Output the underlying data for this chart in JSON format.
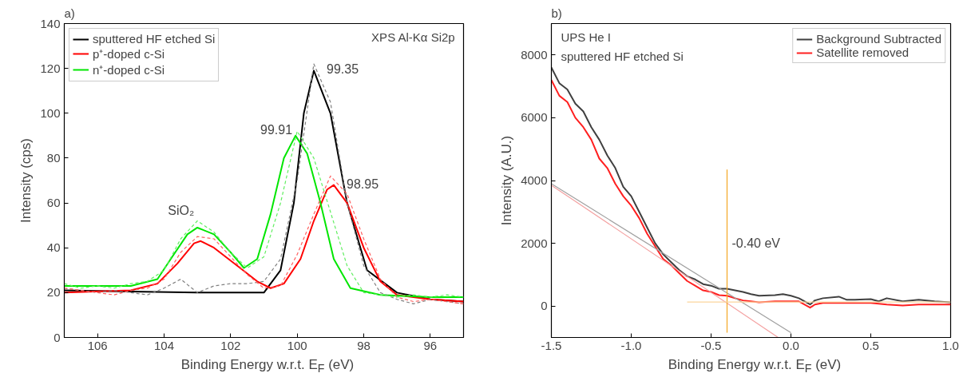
{
  "chart_data": [
    {
      "type": "line",
      "title": "a)",
      "xlabel": "Binding Energy w.r.t. E$_{F}$ (eV)",
      "ylabel": "Intensity (cps)",
      "xlim": [
        107,
        95
      ],
      "ylim": [
        0,
        140
      ],
      "xticks": [
        106,
        104,
        102,
        100,
        98,
        96
      ],
      "yticks": [
        0,
        20,
        40,
        60,
        80,
        100,
        120,
        140
      ],
      "grid": false,
      "legend": "top left",
      "annotations": [
        "XPS Al-Kα Si2p",
        {
          "text": "SiO₂",
          "x": 103,
          "y": 53
        },
        {
          "text": "99.35",
          "x": 99.5,
          "y": 119
        },
        {
          "text": "99.91",
          "x": 100.05,
          "y": 90
        },
        {
          "text": "98.95",
          "x": 98.9,
          "y": 68
        }
      ],
      "series": [
        {
          "name": "sputtered HF etched Si",
          "color": "#000000",
          "line_style": "solid",
          "x": [
            107,
            105,
            103,
            101,
            100.5,
            100.1,
            99.8,
            99.5,
            99.0,
            98.5,
            97.9,
            97,
            96,
            95
          ],
          "values": [
            21,
            20.5,
            20,
            20,
            30,
            60,
            100,
            119,
            100,
            60,
            30,
            20,
            17,
            16
          ]
        },
        {
          "name": "p⁺-doped c-Si",
          "color": "#ff0000",
          "line_style": "solid",
          "x": [
            107,
            105,
            104.2,
            103.6,
            103.1,
            102.9,
            102.5,
            101.8,
            101.2,
            100.8,
            100.4,
            99.9,
            99.5,
            99.1,
            98.9,
            98.5,
            98.0,
            97.5,
            97,
            96,
            95
          ],
          "values": [
            20,
            21,
            24,
            33,
            42,
            43,
            40,
            32,
            25,
            22,
            24,
            35,
            52,
            66,
            68,
            60,
            40,
            25,
            19,
            17,
            16
          ]
        },
        {
          "name": "n⁺-doped c-Si",
          "color": "#00e600",
          "line_style": "solid",
          "x": [
            107,
            105,
            104.2,
            103.8,
            103.3,
            103,
            102.5,
            102,
            101.6,
            101.2,
            100.8,
            100.4,
            100.05,
            99.7,
            99.3,
            98.9,
            98.4,
            97.5,
            96,
            95
          ],
          "values": [
            23,
            23,
            26,
            35,
            46,
            49,
            46,
            38,
            31,
            35,
            55,
            80,
            90,
            82,
            60,
            35,
            22,
            19,
            18,
            18
          ]
        },
        {
          "color": "#808080",
          "line_style": "dashed",
          "x": [
            107,
            106.5,
            106,
            105.5,
            105,
            104.5,
            104,
            103.5,
            103,
            102.5,
            102,
            101.5,
            101,
            100.5,
            100,
            99.5,
            99,
            98.5,
            98,
            97.5,
            97,
            96.5,
            96,
            95.5,
            95
          ],
          "values": [
            22,
            21,
            20,
            21,
            20,
            19,
            22,
            26,
            20,
            23,
            24,
            24,
            25,
            35,
            70,
            122,
            105,
            60,
            32,
            20,
            17,
            15,
            17,
            16,
            15
          ]
        },
        {
          "color": "#ff6060",
          "line_style": "dashed",
          "x": [
            107,
            106.5,
            106,
            105.5,
            105,
            104.5,
            104,
            103.5,
            103,
            102.5,
            102,
            101.5,
            101,
            100.5,
            100,
            99.5,
            99,
            98.5,
            98,
            97.5,
            97,
            96.5,
            96,
            95.5,
            95
          ],
          "values": [
            22,
            21,
            20,
            19,
            21,
            22,
            26,
            38,
            45,
            44,
            36,
            28,
            22,
            23,
            37,
            55,
            72,
            64,
            44,
            26,
            18,
            16,
            17,
            16,
            15
          ]
        },
        {
          "color": "#60ee60",
          "line_style": "dashed",
          "x": [
            107,
            106.5,
            106,
            105.5,
            105,
            104.5,
            104,
            103.5,
            103,
            102.5,
            102,
            101.5,
            101,
            100.5,
            100,
            99.5,
            99,
            98.5,
            98,
            97.5,
            97,
            96.5,
            96,
            95.5,
            95
          ],
          "values": [
            24,
            22,
            23,
            22,
            24,
            25,
            30,
            44,
            52,
            47,
            38,
            31,
            36,
            60,
            92,
            80,
            56,
            32,
            20,
            19,
            18,
            19,
            18,
            19,
            18
          ]
        }
      ]
    },
    {
      "type": "line",
      "title": "b)",
      "xlabel": "Binding Energy w.r.t. E$_{F}$ (eV)",
      "ylabel": "Intensity (A.U.)",
      "xlim": [
        -1.5,
        1.0
      ],
      "ylim": [
        -1000,
        9000
      ],
      "xticks": [
        {
          "value": -1.5,
          "label": "-1.5"
        },
        {
          "value": -1.0,
          "label": "-1.0"
        },
        {
          "value": -0.5,
          "label": "-0.5"
        },
        {
          "value": 0.0,
          "label": "0.0"
        },
        {
          "value": 0.5,
          "label": "0.5"
        },
        {
          "value": 1.0,
          "label": "1.0"
        }
      ],
      "yticks": [
        0,
        2000,
        4000,
        6000,
        8000
      ],
      "grid": false,
      "legend": "top right",
      "annotations": [
        "UPS He I",
        "sputtered HF etched Si",
        {
          "text": "-0.40 eV",
          "x": -0.4,
          "y": 2000
        }
      ],
      "series": [
        {
          "name": "Background Subtracted",
          "color": "#404040",
          "line_style": "solid",
          "x": [
            -1.5,
            -1.45,
            -1.4,
            -1.35,
            -1.3,
            -1.25,
            -1.2,
            -1.15,
            -1.1,
            -1.05,
            -1.0,
            -0.95,
            -0.9,
            -0.85,
            -0.8,
            -0.75,
            -0.7,
            -0.65,
            -0.6,
            -0.55,
            -0.5,
            -0.45,
            -0.4,
            -0.35,
            -0.3,
            -0.25,
            -0.2,
            -0.1,
            -0.05,
            0.0,
            0.05,
            0.12,
            0.15,
            0.2,
            0.3,
            0.35,
            0.4,
            0.5,
            0.55,
            0.6,
            0.7,
            0.8,
            0.9,
            1.0
          ],
          "values": [
            7600,
            7100,
            6900,
            6450,
            6200,
            5700,
            5300,
            4800,
            4400,
            3800,
            3500,
            3000,
            2500,
            2000,
            1650,
            1400,
            1150,
            950,
            850,
            700,
            650,
            550,
            550,
            500,
            450,
            380,
            330,
            350,
            380,
            330,
            250,
            50,
            180,
            250,
            300,
            200,
            200,
            220,
            150,
            250,
            150,
            200,
            150,
            120
          ]
        },
        {
          "name": "Satellite removed",
          "color": "#ff2020",
          "line_style": "solid",
          "x": [
            -1.5,
            -1.45,
            -1.4,
            -1.35,
            -1.3,
            -1.25,
            -1.2,
            -1.15,
            -1.1,
            -1.05,
            -1.0,
            -0.95,
            -0.9,
            -0.85,
            -0.8,
            -0.75,
            -0.7,
            -0.65,
            -0.6,
            -0.55,
            -0.5,
            -0.45,
            -0.4,
            -0.35,
            -0.3,
            -0.25,
            -0.2,
            -0.1,
            0.0,
            0.05,
            0.12,
            0.15,
            0.2,
            0.3,
            0.4,
            0.5,
            0.6,
            0.7,
            0.8,
            0.9,
            1.0
          ],
          "values": [
            7200,
            6700,
            6500,
            6000,
            5700,
            5300,
            4700,
            4400,
            3900,
            3500,
            3200,
            2800,
            2300,
            1900,
            1500,
            1300,
            1050,
            800,
            650,
            500,
            450,
            350,
            330,
            250,
            180,
            150,
            120,
            150,
            150,
            150,
            -50,
            50,
            100,
            100,
            100,
            100,
            50,
            20,
            50,
            50,
            50
          ]
        },
        {
          "color": "#a0a0a0",
          "line_style": "solid",
          "x": [
            -1.5,
            0.0
          ],
          "values": [
            3900,
            -850
          ]
        },
        {
          "color": "#f4a0a0",
          "line_style": "solid",
          "x": [
            -1.5,
            -0.08
          ],
          "values": [
            3850,
            -1000
          ]
        },
        {
          "color": "#f5a623",
          "line_style": "solid",
          "x": [
            -0.4,
            -0.4
          ],
          "values": [
            -850,
            4350
          ]
        },
        {
          "color": "#fbd59c",
          "line_style": "solid",
          "x": [
            -0.65,
            1.0
          ],
          "values": [
            130,
            130
          ]
        }
      ]
    }
  ]
}
